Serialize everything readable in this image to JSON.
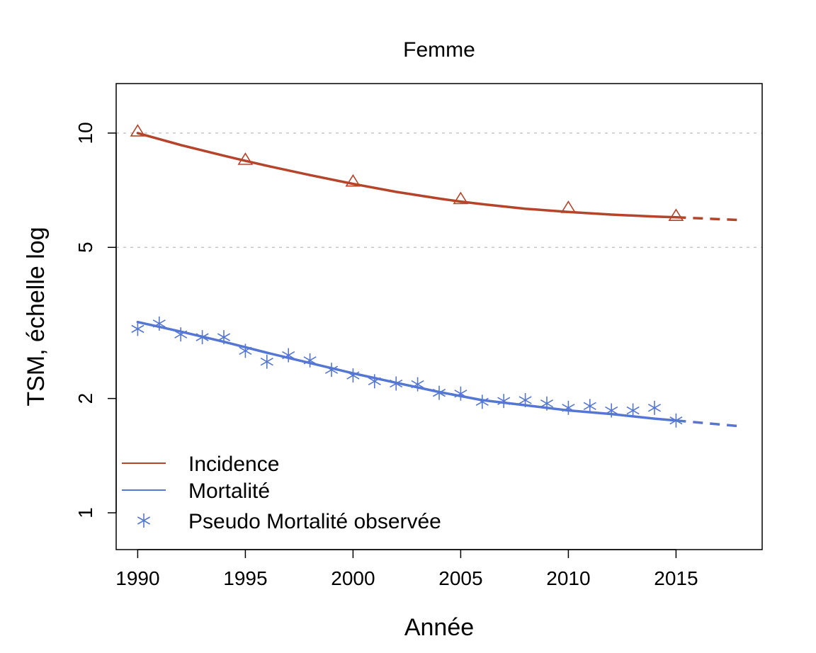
{
  "chart_data": {
    "type": "line",
    "title": "Femme",
    "xlabel": "Année",
    "ylabel": "TSM, échelle log",
    "y_scale": "log",
    "xlim": [
      1989,
      2019
    ],
    "ylim": [
      0.8,
      13.5
    ],
    "x_ticks": [
      1990,
      1995,
      2000,
      2005,
      2010,
      2015
    ],
    "y_ticks": [
      1,
      2,
      5,
      10
    ],
    "gridlines_y": [
      5,
      10
    ],
    "legend_position": "bottom-left",
    "colors": {
      "incidence": "#B5442A",
      "mortalite": "#5577D4",
      "grid": "#C8C8C8"
    },
    "series": [
      {
        "name": "Incidence",
        "key": "incidence",
        "fitted": {
          "x": [
            1990,
            1992,
            1994,
            1995,
            1996,
            1998,
            2000,
            2002,
            2004,
            2005,
            2006,
            2008,
            2010,
            2012,
            2014,
            2015
          ],
          "y": [
            10.0,
            9.3,
            8.72,
            8.45,
            8.2,
            7.75,
            7.35,
            7.0,
            6.72,
            6.6,
            6.5,
            6.32,
            6.2,
            6.1,
            6.03,
            6.0
          ]
        },
        "projection": {
          "x": [
            2015,
            2018
          ],
          "y": [
            6.0,
            5.9
          ]
        },
        "markers": {
          "symbol": "triangle",
          "x": [
            1990,
            1995,
            2000,
            2005,
            2010,
            2015
          ],
          "y": [
            10.1,
            8.5,
            7.45,
            6.7,
            6.35,
            6.05
          ]
        }
      },
      {
        "name": "Mortalité",
        "key": "mortalite",
        "fitted": {
          "x": [
            1990,
            1992,
            1994,
            1996,
            1998,
            2000,
            2002,
            2004,
            2006,
            2008,
            2010,
            2012,
            2014,
            2015
          ],
          "y": [
            3.18,
            3.0,
            2.82,
            2.64,
            2.48,
            2.33,
            2.2,
            2.08,
            1.98,
            1.92,
            1.86,
            1.82,
            1.77,
            1.75
          ]
        },
        "projection": {
          "x": [
            2015,
            2018
          ],
          "y": [
            1.75,
            1.69
          ]
        }
      },
      {
        "name": "Pseudo Mortalité observée",
        "key": "mortalite",
        "markers": {
          "symbol": "asterisk",
          "x": [
            1990,
            1991,
            1992,
            1993,
            1994,
            1995,
            1996,
            1997,
            1998,
            1999,
            2000,
            2001,
            2002,
            2003,
            2004,
            2005,
            2006,
            2007,
            2008,
            2009,
            2010,
            2011,
            2012,
            2013,
            2014,
            2015
          ],
          "y": [
            3.05,
            3.15,
            2.95,
            2.9,
            2.9,
            2.67,
            2.5,
            2.6,
            2.52,
            2.38,
            2.3,
            2.22,
            2.19,
            2.18,
            2.07,
            2.06,
            1.96,
            1.97,
            1.98,
            1.94,
            1.89,
            1.91,
            1.86,
            1.86,
            1.89,
            1.75
          ]
        }
      }
    ]
  }
}
